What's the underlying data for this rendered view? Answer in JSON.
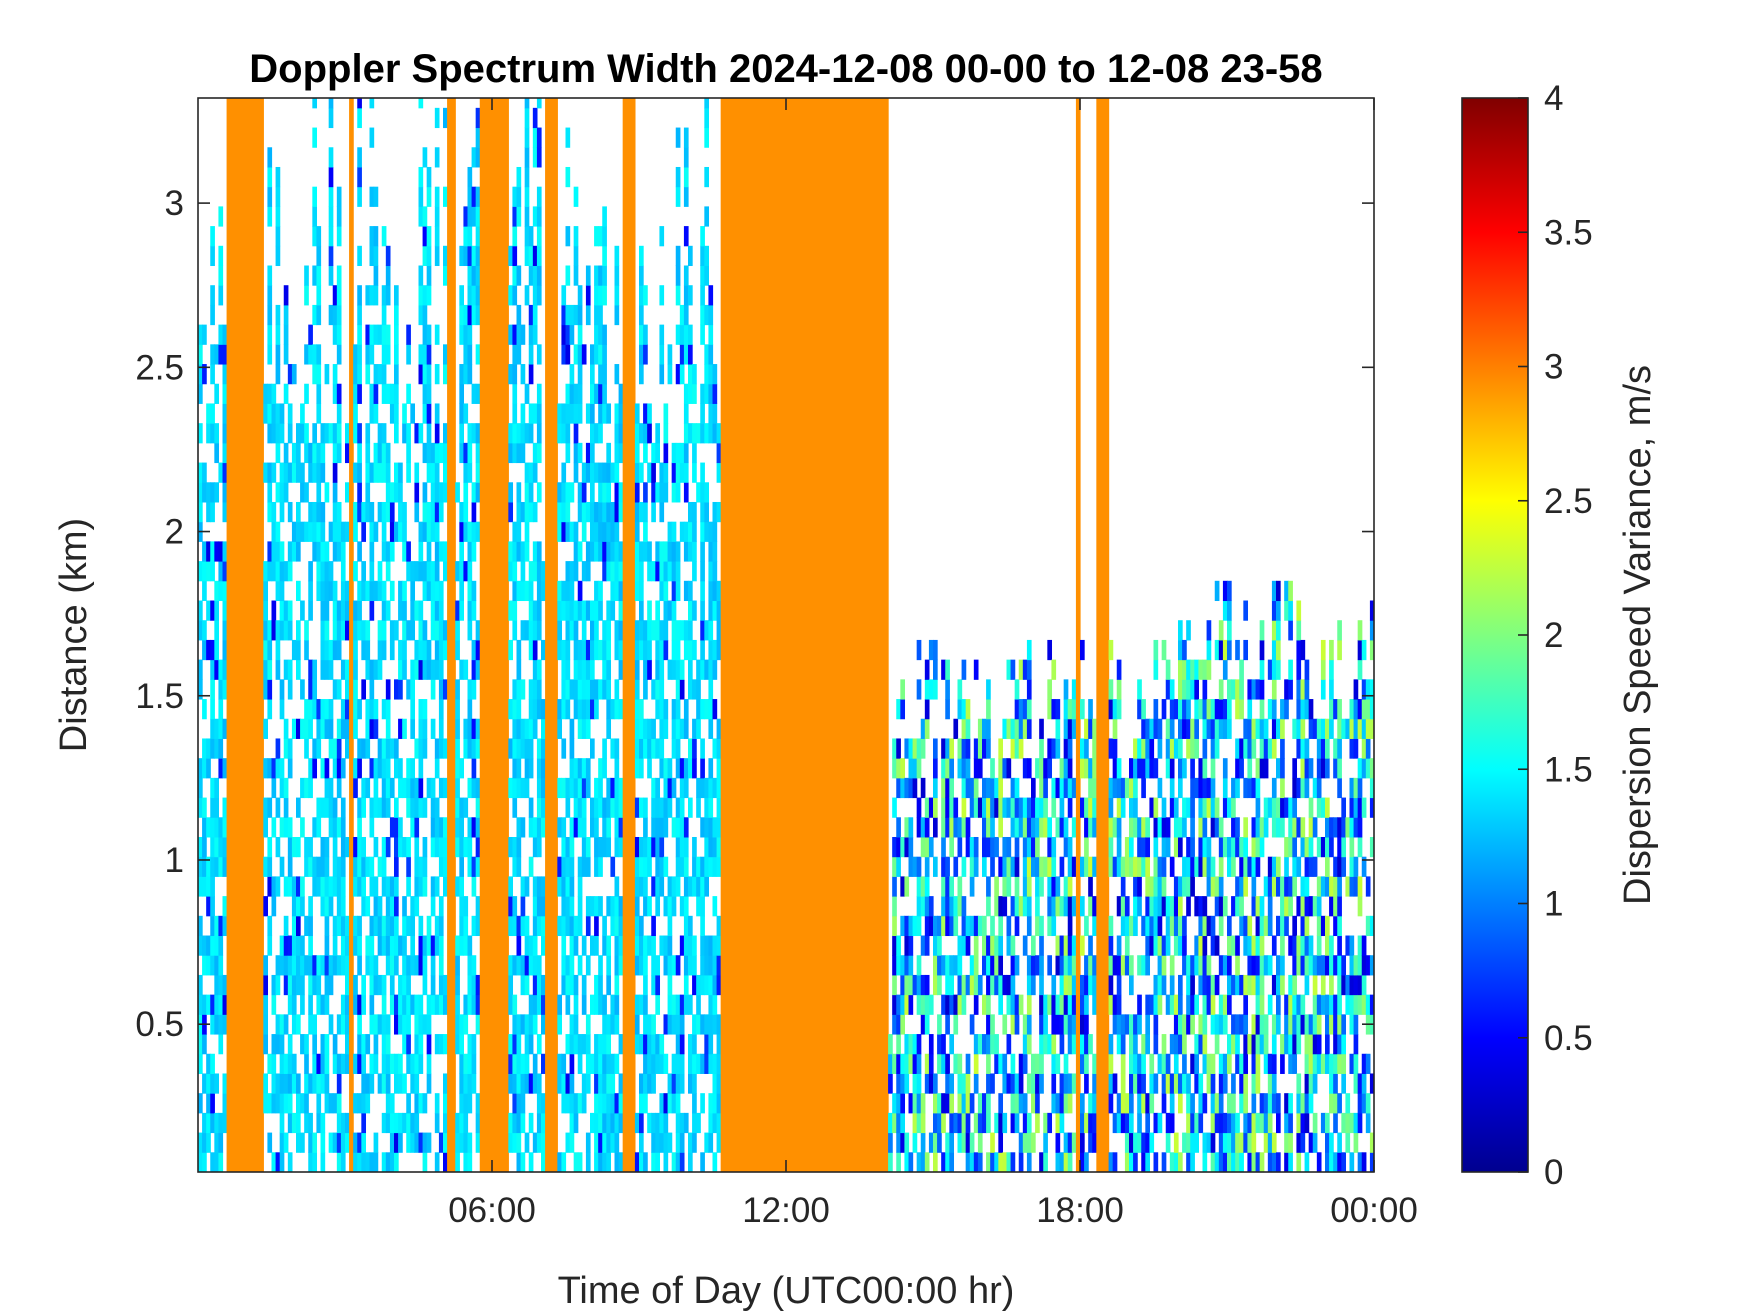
{
  "chart_data": {
    "type": "heatmap",
    "title": "Doppler Spectrum Width 2024-12-08 00-00 to 12-08 23-58",
    "xlabel": "Time of Day (UTC00:00 hr)",
    "ylabel": "Distance (km)",
    "colorbar_label": "Dispersion Speed Variance, m/s",
    "x_units": "hours",
    "xlim": [
      0,
      24
    ],
    "ylim": [
      0.05,
      3.32
    ],
    "clim": [
      0,
      4
    ],
    "colormap": "jet",
    "x_ticks": [
      {
        "value": 6,
        "label": "06:00"
      },
      {
        "value": 12,
        "label": "12:00"
      },
      {
        "value": 18,
        "label": "18:00"
      },
      {
        "value": 24,
        "label": "00:00"
      }
    ],
    "y_ticks": [
      {
        "value": 0.5,
        "label": "0.5"
      },
      {
        "value": 1,
        "label": "1"
      },
      {
        "value": 1.5,
        "label": "1.5"
      },
      {
        "value": 2,
        "label": "2"
      },
      {
        "value": 2.5,
        "label": "2.5"
      },
      {
        "value": 3,
        "label": "3"
      }
    ],
    "colorbar_ticks": [
      {
        "value": 0,
        "label": "0"
      },
      {
        "value": 0.5,
        "label": "0.5"
      },
      {
        "value": 1,
        "label": "1"
      },
      {
        "value": 1.5,
        "label": "1.5"
      },
      {
        "value": 2,
        "label": "2"
      },
      {
        "value": 2.5,
        "label": "2.5"
      },
      {
        "value": 3,
        "label": "3"
      },
      {
        "value": 3.5,
        "label": "3.5"
      },
      {
        "value": 4,
        "label": "4"
      }
    ],
    "saturated_value": 3.0,
    "saturated_color": "#ff9000",
    "full_column_periods_hr": [
      [
        0.6,
        1.35
      ],
      [
        3.05,
        3.15
      ],
      [
        5.08,
        5.22
      ],
      [
        5.75,
        6.35
      ],
      [
        7.05,
        7.3
      ],
      [
        8.65,
        8.92
      ],
      [
        10.7,
        14.05
      ],
      [
        17.9,
        18.02
      ],
      [
        18.35,
        18.6
      ]
    ],
    "low_level_echo": {
      "value_range": [
        0.3,
        2.3
      ],
      "top_km_by_period": [
        {
          "x": [
            14.2,
            19.2
          ],
          "top": 1.45
        },
        {
          "x": [
            19.2,
            24.0
          ],
          "top": 1.6
        }
      ]
    }
  }
}
